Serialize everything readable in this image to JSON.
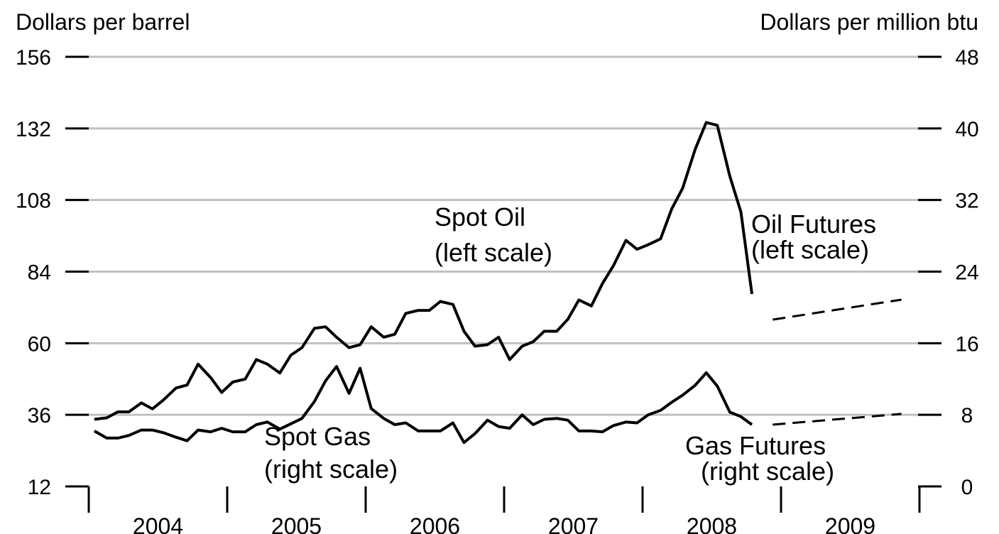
{
  "chart_data": {
    "type": "line",
    "y_label": "Dollars per barrel",
    "y2_label": "Dollars per million btu",
    "xlim": [
      2004,
      2010
    ],
    "xticks": [
      2004,
      2005,
      2006,
      2007,
      2008,
      2009,
      2010
    ],
    "xlabels": [
      2004,
      2005,
      2006,
      2007,
      2008,
      2009
    ],
    "ylim": [
      12,
      156
    ],
    "yticks": [
      12,
      36,
      60,
      84,
      108,
      132,
      156
    ],
    "y2lim": [
      0,
      48
    ],
    "y2ticks": [
      0,
      8,
      16,
      24,
      32,
      40,
      48
    ],
    "grid": true,
    "series": [
      {
        "name": "Spot Oil",
        "note": "(left scale)",
        "color": "#000000",
        "axis": "y",
        "dash": false,
        "x": [
          2004.04,
          2004.13,
          2004.21,
          2004.29,
          2004.38,
          2004.46,
          2004.54,
          2004.63,
          2004.71,
          2004.79,
          2004.88,
          2004.96,
          2005.04,
          2005.13,
          2005.21,
          2005.29,
          2005.38,
          2005.46,
          2005.54,
          2005.63,
          2005.71,
          2005.79,
          2005.88,
          2005.96,
          2006.04,
          2006.13,
          2006.21,
          2006.29,
          2006.38,
          2006.46,
          2006.54,
          2006.63,
          2006.71,
          2006.79,
          2006.88,
          2006.96,
          2007.04,
          2007.13,
          2007.21,
          2007.29,
          2007.38,
          2007.46,
          2007.54,
          2007.63,
          2007.71,
          2007.79,
          2007.88,
          2007.96,
          2008.04,
          2008.13,
          2008.21,
          2008.29,
          2008.38,
          2008.46,
          2008.54,
          2008.63,
          2008.71,
          2008.79
        ],
        "values": [
          34.5,
          35,
          37,
          37,
          40,
          38,
          41,
          45,
          46,
          53,
          48.5,
          43.5,
          47,
          48,
          54.5,
          53,
          50,
          56,
          58.5,
          65,
          65.5,
          62,
          58.5,
          59.5,
          65.5,
          62,
          63,
          70,
          71,
          71,
          74,
          73,
          64,
          59,
          59.5,
          62,
          54.5,
          59,
          60.5,
          64,
          64,
          68,
          74.5,
          72.5,
          80,
          86,
          94.5,
          91.5,
          93,
          95,
          105,
          112,
          125,
          134,
          133,
          116,
          104,
          76.5
        ]
      },
      {
        "name": "Oil Futures",
        "note": "(left scale)",
        "color": "#000000",
        "axis": "y",
        "dash": true,
        "x": [
          2008.94,
          2009.87
        ],
        "values": [
          67.9,
          74.6
        ]
      },
      {
        "name": "Spot Gas",
        "note": "(right scale)",
        "color": "#000000",
        "axis": "y2",
        "dash": false,
        "x": [
          2004.04,
          2004.13,
          2004.21,
          2004.29,
          2004.38,
          2004.46,
          2004.54,
          2004.63,
          2004.71,
          2004.79,
          2004.88,
          2004.96,
          2005.04,
          2005.13,
          2005.21,
          2005.29,
          2005.38,
          2005.46,
          2005.54,
          2005.63,
          2005.71,
          2005.79,
          2005.88,
          2005.96,
          2006.04,
          2006.13,
          2006.21,
          2006.29,
          2006.38,
          2006.46,
          2006.54,
          2006.63,
          2006.71,
          2006.79,
          2006.88,
          2006.96,
          2007.04,
          2007.13,
          2007.21,
          2007.29,
          2007.38,
          2007.46,
          2007.54,
          2007.63,
          2007.71,
          2007.79,
          2007.88,
          2007.96,
          2008.04,
          2008.13,
          2008.21,
          2008.29,
          2008.38,
          2008.46,
          2008.54,
          2008.63,
          2008.71,
          2008.79
        ],
        "values": [
          6.2,
          5.4,
          5.4,
          5.7,
          6.3,
          6.3,
          6.0,
          5.5,
          5.1,
          6.3,
          6.1,
          6.5,
          6.1,
          6.1,
          6.9,
          7.2,
          6.4,
          7.0,
          7.6,
          9.5,
          11.8,
          13.4,
          10.4,
          13.2,
          8.7,
          7.6,
          6.9,
          7.1,
          6.2,
          6.2,
          6.2,
          7.1,
          4.9,
          5.9,
          7.4,
          6.7,
          6.5,
          8.0,
          6.9,
          7.5,
          7.6,
          7.4,
          6.2,
          6.2,
          6.1,
          6.8,
          7.2,
          7.1,
          8.0,
          8.5,
          9.4,
          10.2,
          11.3,
          12.7,
          11.2,
          8.3,
          7.8,
          6.9
        ]
      },
      {
        "name": "Gas Futures",
        "note": "(right scale)",
        "color": "#000000",
        "axis": "y2",
        "dash": true,
        "x": [
          2008.94,
          2009.87
        ],
        "values": [
          6.9,
          8.1
        ]
      }
    ]
  }
}
